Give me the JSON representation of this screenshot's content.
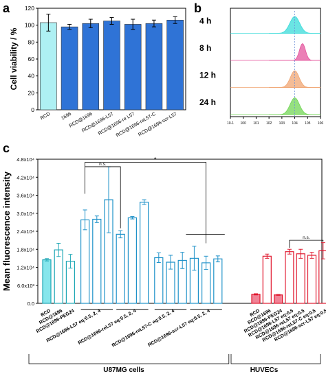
{
  "panels": {
    "a": "a",
    "b": "b",
    "c": "c"
  },
  "chart_data": [
    {
      "panel": "a",
      "type": "bar",
      "ylabel": "Cell viability / %",
      "ylim": [
        0,
        120
      ],
      "yticks": [
        "0",
        "20",
        "40",
        "60",
        "80",
        "100",
        "120"
      ],
      "categories": [
        "RCD",
        "1696",
        "RCD@1696",
        "RCD@1696-L57",
        "RCD@1696-re L57",
        "RCD@1696-reL57-C",
        "RCD@1696-scr-L57"
      ],
      "values": [
        103,
        98,
        102,
        105,
        101,
        102,
        106
      ],
      "errors": [
        10,
        3,
        5,
        4,
        6,
        4,
        4
      ],
      "colors": [
        "#aef0f3",
        "#2f73d6",
        "#2f73d6",
        "#2f73d6",
        "#2f73d6",
        "#2f73d6",
        "#2f73d6"
      ]
    },
    {
      "panel": "b",
      "type": "area",
      "xscale": "log",
      "xticks": [
        "10-1",
        "100",
        "101",
        "102",
        "103",
        "104",
        "105",
        "106"
      ],
      "rows": [
        {
          "label": "4 h",
          "color": "#38dbd9",
          "peak": 4.0,
          "width": 0.9
        },
        {
          "label": "8 h",
          "color": "#e4559d",
          "peak": 4.6,
          "width": 0.55
        },
        {
          "label": "12 h",
          "color": "#f0a673",
          "peak": 4.0,
          "width": 0.8
        },
        {
          "label": "24 h",
          "color": "#71d654",
          "peak": 4.0,
          "width": 0.85
        }
      ],
      "reference_x": 4.0
    },
    {
      "panel": "c",
      "type": "bar",
      "ylabel": "Mean fluorescence intensity",
      "ylim": [
        0,
        48000
      ],
      "yticks": [
        "0.0",
        "6.0x10³",
        "1.2x10⁴",
        "1.8x10⁴",
        "2.4x10⁴",
        "3.0x10⁴",
        "3.6x10⁴",
        "4.2x10⁴",
        "4.8x10⁴"
      ],
      "bars": [
        {
          "v": 14500,
          "e": 400,
          "fill": "#86e6ec",
          "stroke": "#1ea7b5"
        },
        {
          "v": 17800,
          "e": 2200,
          "fill": "none",
          "stroke": "#1ea7b5"
        },
        {
          "v": 14000,
          "e": 2300,
          "fill": "none",
          "stroke": "#1ea7b5"
        },
        {
          "v": 27800,
          "e": 3300,
          "fill": "none",
          "stroke": "#1f92c9"
        },
        {
          "v": 28000,
          "e": 1100,
          "fill": "none",
          "stroke": "#1f92c9"
        },
        {
          "v": 34500,
          "e": 11000,
          "fill": "none",
          "stroke": "#1f92c9"
        },
        {
          "v": 23000,
          "e": 1200,
          "fill": "none",
          "stroke": "#1f92c9"
        },
        {
          "v": 28500,
          "e": 400,
          "fill": "none",
          "stroke": "#1f92c9"
        },
        {
          "v": 33700,
          "e": 800,
          "fill": "none",
          "stroke": "#1f92c9"
        },
        {
          "v": 15200,
          "e": 1600,
          "fill": "none",
          "stroke": "#1f92c9"
        },
        {
          "v": 13700,
          "e": 2300,
          "fill": "none",
          "stroke": "#1f92c9"
        },
        {
          "v": 14300,
          "e": 2700,
          "fill": "none",
          "stroke": "#1f92c9"
        },
        {
          "v": 15000,
          "e": 4000,
          "fill": "none",
          "stroke": "#1f92c9"
        },
        {
          "v": 13500,
          "e": 2200,
          "fill": "none",
          "stroke": "#1f92c9"
        },
        {
          "v": 14800,
          "e": 1000,
          "fill": "none",
          "stroke": "#1f92c9"
        },
        {
          "v": 3000,
          "e": 200,
          "fill": "#f08396",
          "stroke": "#e0172d"
        },
        {
          "v": 15700,
          "e": 700,
          "fill": "none",
          "stroke": "#e0172d"
        },
        {
          "v": 2800,
          "e": 150,
          "fill": "#f08396",
          "stroke": "#e0172d"
        },
        {
          "v": 17200,
          "e": 800,
          "fill": "none",
          "stroke": "#e0172d"
        },
        {
          "v": 16500,
          "e": 1500,
          "fill": "none",
          "stroke": "#e0172d"
        },
        {
          "v": 16000,
          "e": 1000,
          "fill": "none",
          "stroke": "#e0172d"
        },
        {
          "v": 17500,
          "e": 2700,
          "fill": "none",
          "stroke": "#e0172d"
        }
      ],
      "xlabels": [
        {
          "text": "RCD",
          "bar": 0
        },
        {
          "text": "RCD@1696",
          "bar": 1
        },
        {
          "text": "RCD@1696-PEG24",
          "bar": 2
        },
        {
          "text": "RCD@1696-L57 eq:0.5, 2, 4",
          "bar": 4
        },
        {
          "text": "RCD@1696-reL57 eq:0.5, 2, 4",
          "bar": 7
        },
        {
          "text": "RCD@1696-reL57-C eq:0.5, 2, 4",
          "bar": 10
        },
        {
          "text": "RCD@1696-scr-L57 eq:0.5, 2, 4",
          "bar": 13
        },
        {
          "text": "RCD",
          "bar": 15
        },
        {
          "text": "RCD@1696",
          "bar": 16
        },
        {
          "text": "RCD@1696-PEG24",
          "bar": 17
        },
        {
          "text": "RCD@1696-L57 eq:0.5",
          "bar": 18
        },
        {
          "text": "RCD@1696-reL57 eq:0.5",
          "bar": 19
        },
        {
          "text": "RCD@1696-reL57-C eq:0.5",
          "bar": 20
        },
        {
          "text": "RCD@1696-scr-L57 eq:0.5",
          "bar": 21
        }
      ],
      "annotations": [
        {
          "text": "n.s.",
          "from": 3,
          "to": 6
        },
        {
          "text": "*",
          "from": 3,
          "to": 13
        },
        {
          "text": "n.s.",
          "from": 18,
          "to": 21
        }
      ],
      "groups": [
        {
          "label": "U87MG cells",
          "from": 0,
          "to": 14
        },
        {
          "label": "HUVECs",
          "from": 15,
          "to": 21
        }
      ]
    }
  ]
}
